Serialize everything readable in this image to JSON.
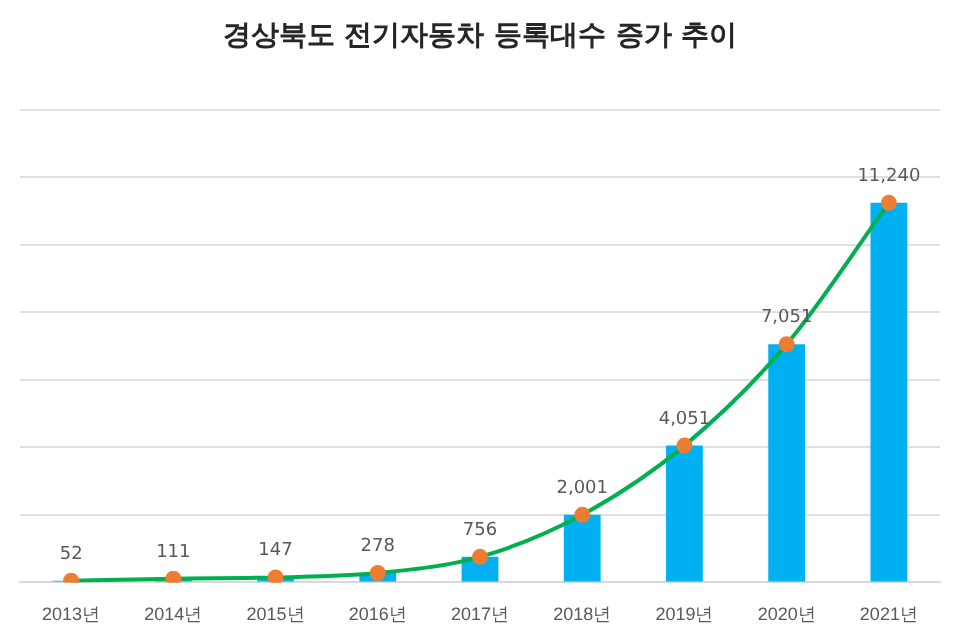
{
  "chart_data": {
    "type": "bar",
    "title": "경상북도 전기자동차 등록대수 증가 추이",
    "categories": [
      "2013년",
      "2014년",
      "2015년",
      "2016년",
      "2017년",
      "2018년",
      "2019년",
      "2020년",
      "2021년"
    ],
    "series": [
      {
        "color": "#00b0f0",
        "values": [
          52,
          111,
          147,
          278,
          756,
          2001,
          4051,
          7051,
          11240
        ],
        "value_labels": [
          "52",
          "111",
          "147",
          "278",
          "756",
          "2,001",
          "4,051",
          "7,051",
          "11,240"
        ]
      },
      {
        "type": "line",
        "color": "#00b050",
        "marker": "circle",
        "values": [
          52,
          111,
          147,
          278,
          756,
          2001,
          4051,
          7051,
          11240
        ]
      }
    ],
    "grid": "y",
    "legend": false,
    "tick_labels": "x",
    "ylim": [
      0,
      14000
    ],
    "yticks": [
      {
        "value": 0,
        "label": null
      },
      {
        "value": 2000,
        "label": null
      },
      {
        "value": 4000,
        "label": null
      },
      {
        "value": 6000,
        "label": null
      },
      {
        "value": 8000,
        "label": null
      },
      {
        "value": 10000,
        "label": null
      },
      {
        "value": 12000,
        "label": null
      },
      {
        "value": 14000,
        "label": null
      }
    ]
  }
}
